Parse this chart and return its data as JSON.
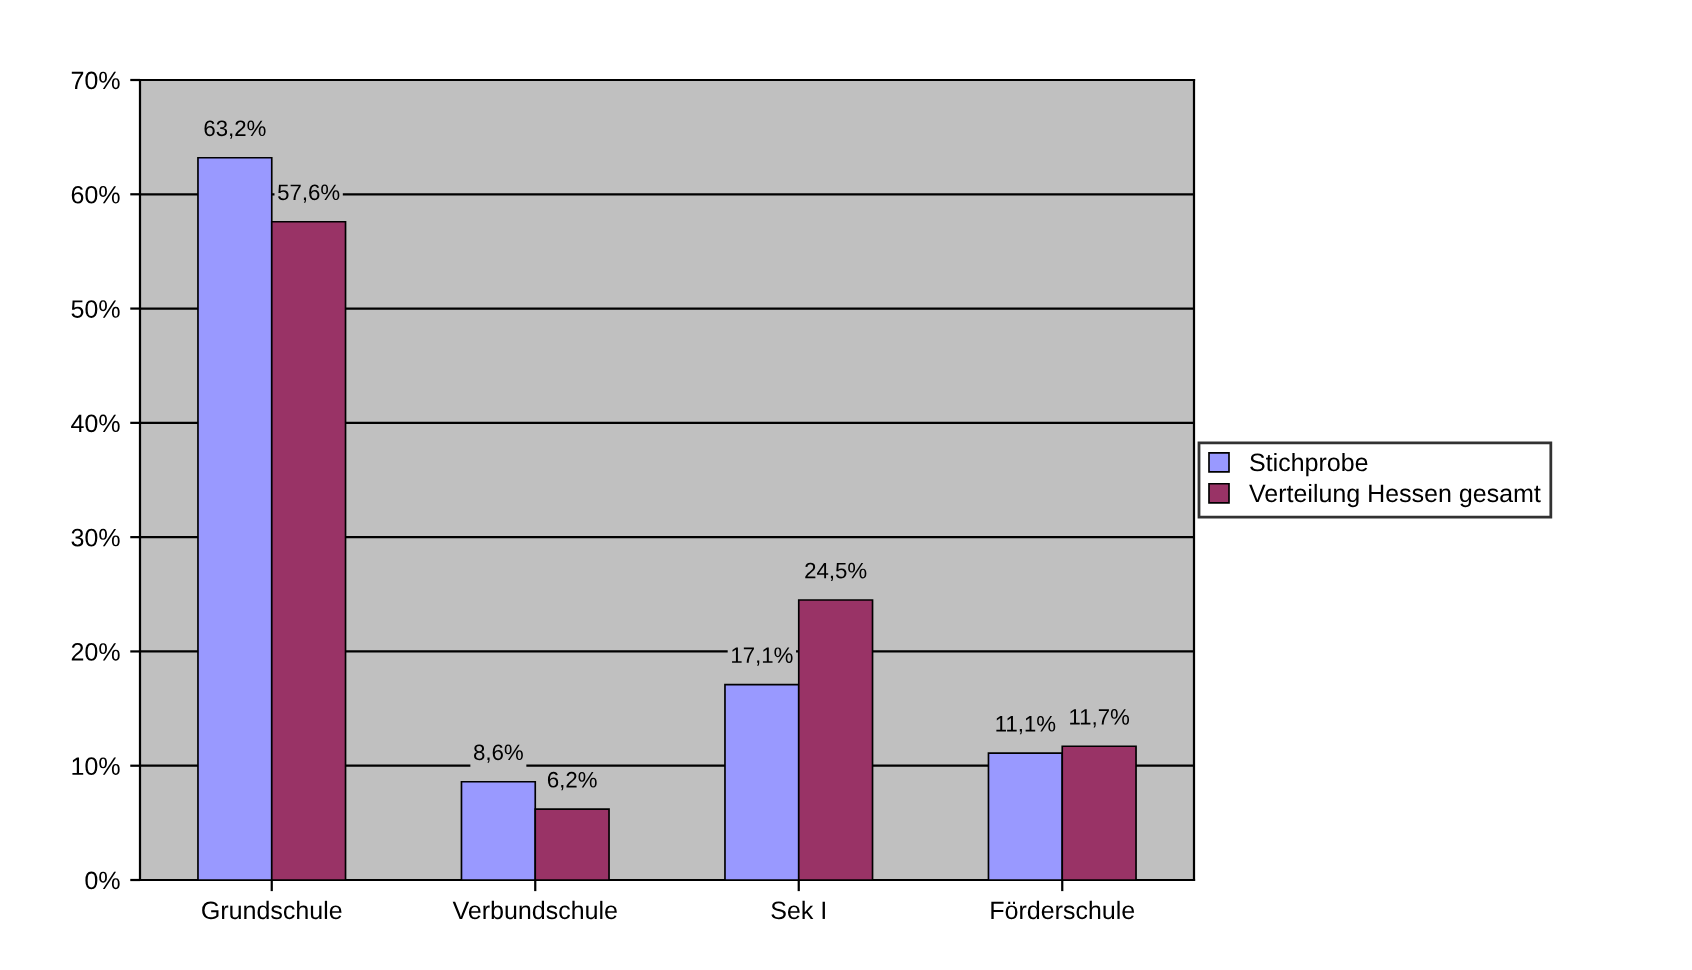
{
  "chart_data": {
    "type": "bar",
    "categories": [
      "Grundschule",
      "Verbundschule",
      "Sek I",
      "Förderschule"
    ],
    "series": [
      {
        "name": "Stichprobe",
        "color": "#9999ff",
        "values": [
          63.2,
          8.6,
          17.1,
          11.1
        ],
        "value_labels": [
          "63,2%",
          "8,6%",
          "17,1%",
          "11,1%"
        ]
      },
      {
        "name": "Verteilung Hessen gesamt",
        "color": "#993366",
        "values": [
          57.6,
          6.2,
          24.5,
          11.7
        ],
        "value_labels": [
          "57,6%",
          "6,2%",
          "24,5%",
          "11,7%"
        ]
      }
    ],
    "ylim": [
      0,
      70
    ],
    "yticks": [
      {
        "value": 0,
        "label": "0%"
      },
      {
        "value": 10,
        "label": "10%"
      },
      {
        "value": 20,
        "label": "20%"
      },
      {
        "value": 30,
        "label": "30%"
      },
      {
        "value": 40,
        "label": "40%"
      },
      {
        "value": 50,
        "label": "50%"
      },
      {
        "value": 60,
        "label": "60%"
      },
      {
        "value": 70,
        "label": "70%"
      }
    ],
    "grid": "y",
    "legend": "right"
  }
}
